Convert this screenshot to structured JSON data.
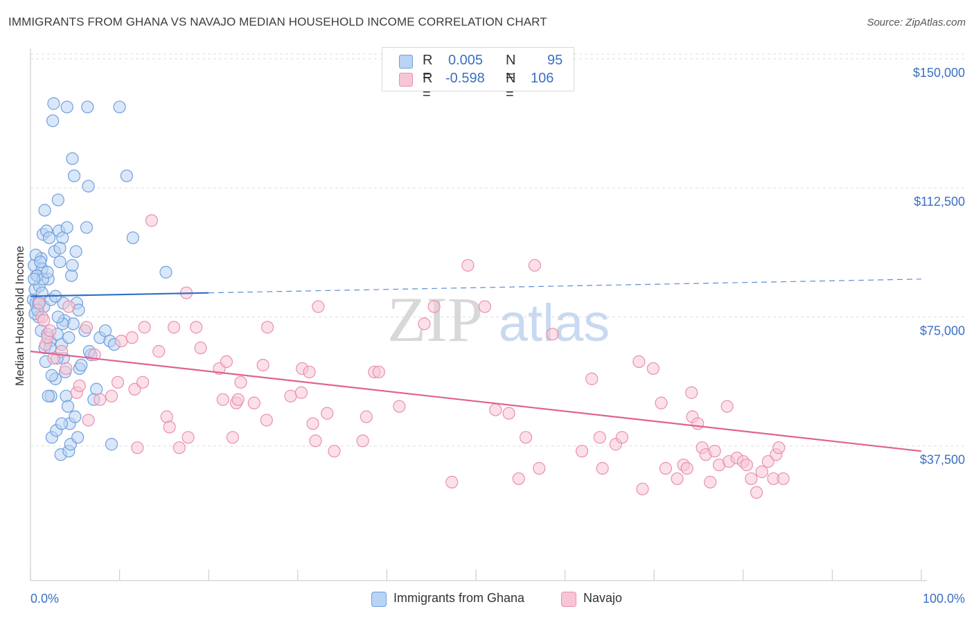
{
  "title": "IMMIGRANTS FROM GHANA VS NAVAJO MEDIAN HOUSEHOLD INCOME CORRELATION CHART",
  "source": "Source: ZipAtlas.com",
  "watermark": {
    "zip": "ZIP",
    "atlas": "atlas"
  },
  "colors": {
    "ghana_fill": "#b9d3f3",
    "ghana_stroke": "#6f9fde",
    "ghana_line": "#2e6fc9",
    "navajo_fill": "#f7c6d6",
    "navajo_stroke": "#e98fae",
    "navajo_line": "#e0628f",
    "grid": "#dddddd",
    "axis_text": "#3a6fc4"
  },
  "legend": {
    "rows": [
      {
        "r_label": "R =",
        "r_value": "0.005",
        "n_label": "N =",
        "n_value": "95"
      },
      {
        "r_label": "R =",
        "r_value": "-0.598",
        "n_label": "N =",
        "n_value": "106"
      }
    ]
  },
  "bottom_legend": [
    "Immigrants from Ghana",
    "Navajo"
  ],
  "chart_data": {
    "type": "scatter",
    "title": "IMMIGRANTS FROM GHANA VS NAVAJO MEDIAN HOUSEHOLD INCOME CORRELATION CHART",
    "xlabel": "",
    "ylabel": "Median Household Income",
    "xlim": [
      0,
      100
    ],
    "ylim": [
      0,
      153000
    ],
    "x_tick_labels": [
      "0.0%",
      "100.0%"
    ],
    "y_ticks": [
      37500,
      75000,
      112500,
      150000
    ],
    "y_tick_labels": [
      "$37,500",
      "$75,000",
      "$112,500",
      "$150,000"
    ],
    "grid": true,
    "series": [
      {
        "name": "Immigrants from Ghana",
        "stats": {
          "R": 0.005,
          "N": 95
        },
        "trend": {
          "x0": 0,
          "y0": 81000,
          "x1": 100,
          "y1": 86000,
          "solid_until": 20
        },
        "points": [
          [
            0.3,
            80000
          ],
          [
            0.4,
            90000
          ],
          [
            0.5,
            83000
          ],
          [
            0.6,
            79000
          ],
          [
            0.8,
            87000
          ],
          [
            0.9,
            75000
          ],
          [
            1.0,
            84000
          ],
          [
            0.5,
            76000
          ],
          [
            1.2,
            92000
          ],
          [
            1.3,
            89000
          ],
          [
            1.4,
            99000
          ],
          [
            1.2,
            71000
          ],
          [
            1.5,
            78000
          ],
          [
            1.6,
            106000
          ],
          [
            1.8,
            100000
          ],
          [
            1.7,
            62000
          ],
          [
            2.0,
            86000
          ],
          [
            2.1,
            98000
          ],
          [
            2.2,
            68000
          ],
          [
            2.3,
            80000
          ],
          [
            2.3,
            52000
          ],
          [
            2.4,
            40000
          ],
          [
            2.5,
            132000
          ],
          [
            2.6,
            137000
          ],
          [
            2.7,
            94000
          ],
          [
            2.8,
            57000
          ],
          [
            2.9,
            42000
          ],
          [
            3.0,
            70000
          ],
          [
            3.1,
            109000
          ],
          [
            3.2,
            100000
          ],
          [
            3.3,
            91000
          ],
          [
            3.4,
            35000
          ],
          [
            3.5,
            67000
          ],
          [
            3.6,
            98000
          ],
          [
            3.7,
            79000
          ],
          [
            3.7,
            63000
          ],
          [
            3.8,
            74000
          ],
          [
            3.9,
            59000
          ],
          [
            4.0,
            52000
          ],
          [
            4.1,
            101000
          ],
          [
            4.1,
            136000
          ],
          [
            4.2,
            49000
          ],
          [
            4.3,
            36000
          ],
          [
            4.4,
            44000
          ],
          [
            4.5,
            38000
          ],
          [
            4.6,
            87000
          ],
          [
            4.7,
            121000
          ],
          [
            4.8,
            73000
          ],
          [
            4.9,
            116000
          ],
          [
            5.1,
            94000
          ],
          [
            5.2,
            79000
          ],
          [
            5.3,
            40000
          ],
          [
            5.4,
            77000
          ],
          [
            5.5,
            60000
          ],
          [
            6.1,
            71000
          ],
          [
            6.3,
            101000
          ],
          [
            6.4,
            136000
          ],
          [
            6.5,
            113000
          ],
          [
            6.8,
            64000
          ],
          [
            7.4,
            54000
          ],
          [
            7.8,
            69000
          ],
          [
            8.4,
            71000
          ],
          [
            8.9,
            68000
          ],
          [
            9.4,
            67000
          ],
          [
            10.0,
            136000
          ],
          [
            10.8,
            116000
          ],
          [
            11.5,
            98000
          ],
          [
            15.2,
            88000
          ],
          [
            0.6,
            93000
          ],
          [
            0.7,
            87000
          ],
          [
            1.1,
            91000
          ],
          [
            1.9,
            70000
          ],
          [
            2.0,
            52000
          ],
          [
            3.3,
            95000
          ],
          [
            4.3,
            69000
          ],
          [
            1.3,
            82000
          ],
          [
            0.9,
            79000
          ],
          [
            2.4,
            58000
          ],
          [
            3.0,
            63000
          ],
          [
            3.6,
            73000
          ],
          [
            1.6,
            66000
          ],
          [
            0.8,
            77000
          ],
          [
            5.0,
            46000
          ],
          [
            2.8,
            81000
          ],
          [
            1.4,
            86000
          ],
          [
            4.7,
            90000
          ],
          [
            3.1,
            75000
          ],
          [
            2.2,
            66000
          ],
          [
            6.6,
            65000
          ],
          [
            0.4,
            86000
          ],
          [
            1.9,
            88000
          ],
          [
            3.5,
            44000
          ],
          [
            5.7,
            61000
          ],
          [
            7.1,
            51000
          ],
          [
            9.1,
            38000
          ]
        ]
      },
      {
        "name": "Navajo",
        "stats": {
          "R": -0.598,
          "N": 106
        },
        "trend": {
          "x0": 0,
          "y0": 65000,
          "x1": 100,
          "y1": 36000
        },
        "points": [
          [
            1.0,
            79000
          ],
          [
            1.3,
            75000
          ],
          [
            1.5,
            74000
          ],
          [
            1.7,
            67000
          ],
          [
            1.9,
            69000
          ],
          [
            2.2,
            71000
          ],
          [
            2.6,
            63000
          ],
          [
            3.5,
            65000
          ],
          [
            4.0,
            60000
          ],
          [
            4.3,
            78000
          ],
          [
            5.2,
            53000
          ],
          [
            5.5,
            55000
          ],
          [
            6.3,
            72000
          ],
          [
            6.5,
            45000
          ],
          [
            7.2,
            64000
          ],
          [
            7.8,
            51000
          ],
          [
            9.1,
            52000
          ],
          [
            9.8,
            56000
          ],
          [
            10.2,
            68000
          ],
          [
            11.4,
            69000
          ],
          [
            11.7,
            54000
          ],
          [
            12.0,
            37000
          ],
          [
            12.6,
            56000
          ],
          [
            12.8,
            72000
          ],
          [
            13.6,
            103000
          ],
          [
            14.4,
            65000
          ],
          [
            15.3,
            46000
          ],
          [
            15.6,
            43000
          ],
          [
            16.1,
            72000
          ],
          [
            16.7,
            37000
          ],
          [
            17.7,
            40000
          ],
          [
            17.5,
            82000
          ],
          [
            18.6,
            72000
          ],
          [
            19.1,
            66000
          ],
          [
            21.2,
            60000
          ],
          [
            21.6,
            51000
          ],
          [
            22.0,
            62000
          ],
          [
            22.7,
            40000
          ],
          [
            23.1,
            50000
          ],
          [
            23.3,
            51000
          ],
          [
            23.6,
            56000
          ],
          [
            25.1,
            50000
          ],
          [
            26.1,
            61000
          ],
          [
            26.5,
            45000
          ],
          [
            26.6,
            72000
          ],
          [
            29.2,
            52000
          ],
          [
            30.5,
            60000
          ],
          [
            30.4,
            53000
          ],
          [
            31.3,
            59000
          ],
          [
            31.7,
            44000
          ],
          [
            32.0,
            39000
          ],
          [
            32.3,
            78000
          ],
          [
            33.3,
            47000
          ],
          [
            34.1,
            36000
          ],
          [
            37.3,
            39000
          ],
          [
            37.7,
            46000
          ],
          [
            38.6,
            59000
          ],
          [
            39.1,
            59000
          ],
          [
            41.4,
            49000
          ],
          [
            44.2,
            73000
          ],
          [
            45.3,
            78000
          ],
          [
            47.3,
            27000
          ],
          [
            49.1,
            90000
          ],
          [
            51.0,
            78000
          ],
          [
            52.2,
            48000
          ],
          [
            53.7,
            47000
          ],
          [
            54.8,
            28000
          ],
          [
            55.6,
            40000
          ],
          [
            56.6,
            90000
          ],
          [
            57.1,
            31000
          ],
          [
            58.6,
            70000
          ],
          [
            61.9,
            36000
          ],
          [
            63.0,
            57000
          ],
          [
            63.9,
            40000
          ],
          [
            64.2,
            31000
          ],
          [
            65.7,
            38000
          ],
          [
            66.4,
            40000
          ],
          [
            68.3,
            62000
          ],
          [
            68.7,
            25000
          ],
          [
            69.9,
            60000
          ],
          [
            70.8,
            50000
          ],
          [
            71.3,
            31000
          ],
          [
            72.6,
            28000
          ],
          [
            73.3,
            32000
          ],
          [
            73.7,
            31000
          ],
          [
            74.2,
            53000
          ],
          [
            74.3,
            46000
          ],
          [
            74.9,
            44000
          ],
          [
            75.4,
            37000
          ],
          [
            75.8,
            35000
          ],
          [
            76.3,
            27000
          ],
          [
            76.8,
            36000
          ],
          [
            77.3,
            32000
          ],
          [
            78.2,
            49000
          ],
          [
            78.4,
            33000
          ],
          [
            79.3,
            34000
          ],
          [
            80.0,
            33000
          ],
          [
            80.4,
            32000
          ],
          [
            80.9,
            28000
          ],
          [
            81.5,
            24000
          ],
          [
            82.1,
            30000
          ],
          [
            82.8,
            33000
          ],
          [
            83.4,
            28000
          ],
          [
            84.5,
            28000
          ],
          [
            83.7,
            35000
          ],
          [
            84.0,
            37000
          ]
        ]
      }
    ]
  }
}
